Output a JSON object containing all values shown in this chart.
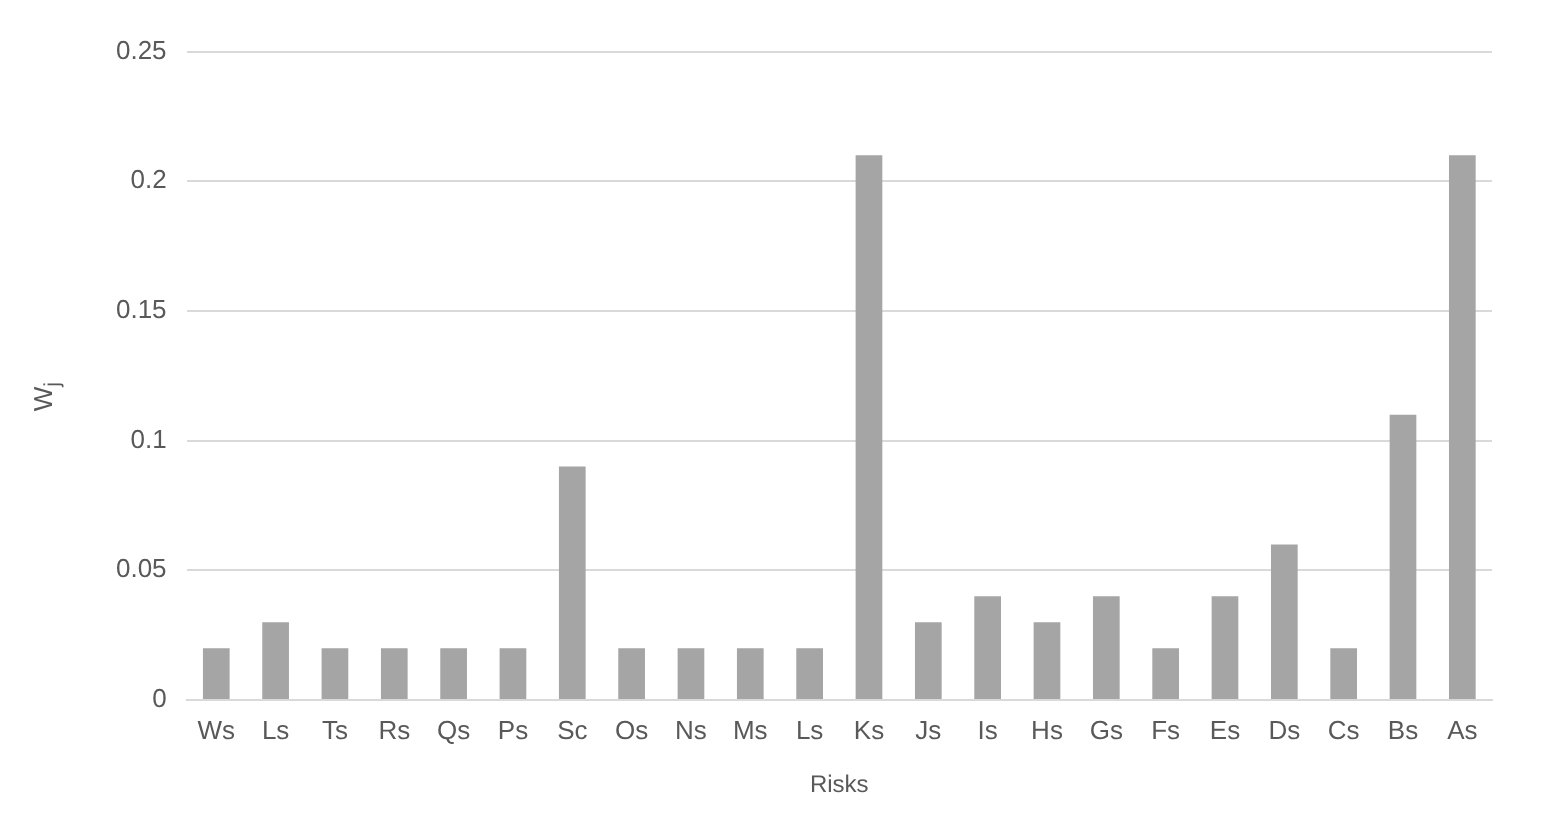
{
  "chart_data": {
    "type": "bar",
    "xlabel": "Risks",
    "ylabel": "W$_{j}$",
    "categories": [
      "Ws",
      "Ls",
      "Ts",
      "Rs",
      "Qs",
      "Ps",
      "Sc",
      "Os",
      "Ns",
      "Ms",
      "Ls",
      "Ks",
      "Js",
      "Is",
      "Hs",
      "Gs",
      "Fs",
      "Es",
      "Ds",
      "Cs",
      "Bs",
      "As"
    ],
    "values": [
      0.02,
      0.03,
      0.02,
      0.02,
      0.02,
      0.02,
      0.09,
      0.02,
      0.02,
      0.02,
      0.02,
      0.21,
      0.03,
      0.04,
      0.03,
      0.04,
      0.02,
      0.04,
      0.06,
      0.02,
      0.11,
      0.21
    ],
    "color": "#a5a5a5",
    "ylim": [
      0,
      0.25
    ],
    "yticks": [
      0,
      0.05,
      0.1,
      0.15,
      0.2,
      0.25
    ],
    "grid": "y",
    "legend": false
  }
}
